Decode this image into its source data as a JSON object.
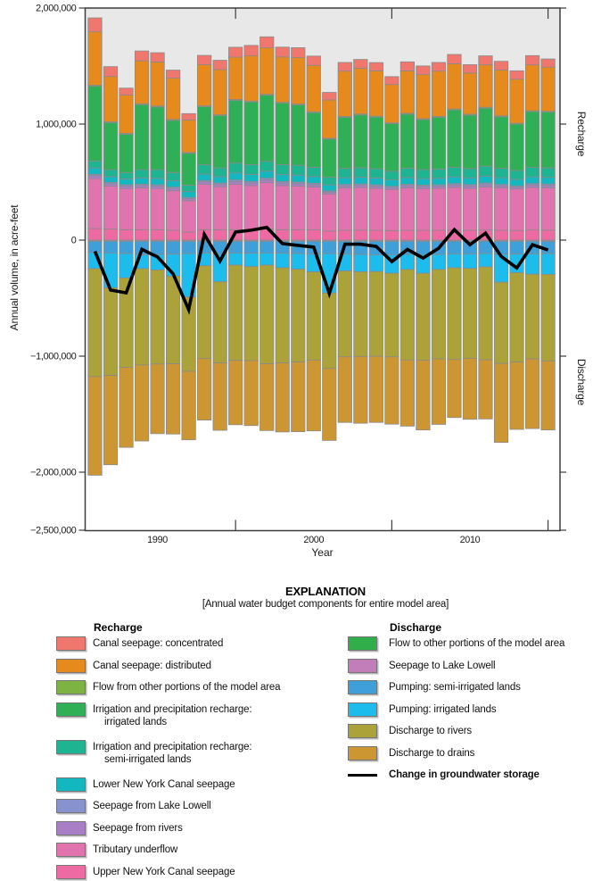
{
  "chart_data": {
    "type": "bar",
    "subtype": "diverging-stacked-bars-with-line-overlay",
    "title": "",
    "xlabel": "Year",
    "ylabel": "Annual volume, in acre-feet",
    "right_labels": {
      "top": "Recharge",
      "bottom": "Discharge"
    },
    "x": [
      1986,
      1987,
      1988,
      1989,
      1990,
      1991,
      1992,
      1993,
      1994,
      1995,
      1996,
      1997,
      1998,
      1999,
      2000,
      2001,
      2002,
      2003,
      2004,
      2005,
      2006,
      2007,
      2008,
      2009,
      2010,
      2011,
      2012,
      2013,
      2014,
      2015
    ],
    "ylim": [
      -2500000,
      2000000
    ],
    "yticks": [
      2000000,
      1000000,
      0,
      -1000000,
      -2000000,
      -2500000
    ],
    "ytick_labels": [
      "2,000,000",
      "1,000,000",
      "0",
      "−1,000,000",
      "−2,000,000",
      "−2,500,000"
    ],
    "xticks_labeled": [
      1990,
      2000,
      2010
    ],
    "xtick_labels": [
      "1990",
      "2000",
      "2010"
    ],
    "xticks_minor": [
      1995,
      2005,
      2015
    ],
    "grid": false,
    "recharge_background": "#e8e8e8",
    "bar_edge_color": "#8a8a8a",
    "recharge_series": [
      {
        "name": "Upper New York Canal seepage",
        "color": "#ee6aa2",
        "values": [
          100000,
          95000,
          90000,
          90000,
          90000,
          85000,
          70000,
          90000,
          90000,
          90000,
          90000,
          95000,
          90000,
          90000,
          88000,
          78000,
          85000,
          86000,
          85000,
          82000,
          85000,
          84000,
          85000,
          87000,
          85000,
          87000,
          85000,
          83000,
          87000,
          86000
        ]
      },
      {
        "name": "Tributary underflow",
        "color": "#e173ae",
        "values": [
          430000,
          370000,
          355000,
          360000,
          355000,
          340000,
          270000,
          390000,
          370000,
          390000,
          380000,
          400000,
          380000,
          375000,
          370000,
          320000,
          365000,
          368000,
          362000,
          355000,
          365000,
          360000,
          362000,
          368000,
          362000,
          370000,
          365000,
          358000,
          368000,
          365000
        ]
      },
      {
        "name": "Seepage from rivers",
        "color": "#a87fc5",
        "values": [
          25000,
          20000,
          20000,
          20000,
          20000,
          20000,
          18000,
          22000,
          20000,
          25000,
          22000,
          25000,
          22000,
          22000,
          20000,
          16000,
          18000,
          18000,
          18000,
          16000,
          20000,
          18000,
          18000,
          20000,
          20000,
          22000,
          18000,
          16000,
          20000,
          20000
        ]
      },
      {
        "name": "Seepage from Lake Lowell",
        "color": "#8793cf",
        "values": [
          12000,
          12000,
          12000,
          12000,
          12000,
          12000,
          10000,
          12000,
          12000,
          14000,
          13000,
          14000,
          13000,
          13000,
          12000,
          10000,
          12000,
          12000,
          12000,
          11000,
          12000,
          12000,
          12000,
          12000,
          12000,
          13000,
          12000,
          11000,
          12000,
          12000
        ]
      },
      {
        "name": "Lower New York Canal seepage",
        "color": "#12b7bf",
        "values": [
          55000,
          50000,
          50000,
          55000,
          55000,
          55000,
          50000,
          55000,
          55000,
          60000,
          60000,
          60000,
          60000,
          60000,
          58000,
          52000,
          58000,
          58000,
          58000,
          55000,
          58000,
          56000,
          56000,
          58000,
          58000,
          60000,
          58000,
          56000,
          58000,
          58000
        ]
      },
      {
        "name": "Irrigation and precipitation recharge: semi-irrigated lands",
        "color": "#1eb391",
        "values": [
          60000,
          60000,
          55000,
          70000,
          75000,
          70000,
          55000,
          80000,
          75000,
          85000,
          85000,
          85000,
          85000,
          85000,
          80000,
          65000,
          80000,
          82000,
          80000,
          75000,
          80000,
          78000,
          80000,
          82000,
          80000,
          85000,
          80000,
          76000,
          82000,
          82000
        ]
      },
      {
        "name": "Irrigation and precipitation recharge: irrigated lands",
        "color": "#2fb057",
        "values": [
          645000,
          405000,
          330000,
          560000,
          540000,
          450000,
          275000,
          500000,
          450000,
          540000,
          540000,
          570000,
          530000,
          520000,
          470000,
          330000,
          440000,
          455000,
          445000,
          410000,
          465000,
          430000,
          445000,
          495000,
          460000,
          500000,
          445000,
          400000,
          480000,
          480000
        ]
      },
      {
        "name": "Flow from other portions of the model area",
        "color": "#7cb342",
        "values": [
          8000,
          8000,
          8000,
          8000,
          8000,
          8000,
          7000,
          8000,
          8000,
          8000,
          8000,
          8000,
          8000,
          8000,
          8000,
          7000,
          8000,
          8000,
          8000,
          7000,
          8000,
          8000,
          8000,
          8000,
          8000,
          8000,
          8000,
          7000,
          8000,
          8000
        ]
      },
      {
        "name": "Canal seepage: distributed",
        "color": "#e68a1e",
        "values": [
          460000,
          390000,
          330000,
          370000,
          380000,
          355000,
          280000,
          355000,
          390000,
          365000,
          390000,
          400000,
          390000,
          400000,
          400000,
          330000,
          390000,
          395000,
          390000,
          330000,
          365000,
          380000,
          390000,
          390000,
          355000,
          365000,
          395000,
          380000,
          395000,
          380000
        ]
      },
      {
        "name": "Canal seepage: concentrated",
        "color": "#f0776d",
        "values": [
          120000,
          85000,
          60000,
          85000,
          80000,
          70000,
          55000,
          80000,
          80000,
          85000,
          90000,
          95000,
          85000,
          85000,
          80000,
          65000,
          75000,
          75000,
          72000,
          68000,
          78000,
          75000,
          75000,
          80000,
          72000,
          78000,
          75000,
          72000,
          80000,
          70000
        ]
      }
    ],
    "discharge_series": [
      {
        "name": "Flow to other portions of the model area",
        "color": "#2fae4a",
        "values": [
          3000,
          3000,
          3000,
          3000,
          3000,
          3000,
          3000,
          3000,
          3000,
          3000,
          3000,
          3000,
          3000,
          3000,
          3000,
          3000,
          3000,
          3000,
          3000,
          3000,
          3000,
          3000,
          3000,
          3000,
          3000,
          3000,
          3000,
          3000,
          3000,
          3000
        ]
      },
      {
        "name": "Seepage to Lake Lowell",
        "color": "#c27eb9",
        "values": [
          8000,
          8000,
          8000,
          8000,
          8000,
          8000,
          8000,
          8000,
          8000,
          8000,
          8000,
          8000,
          8000,
          8000,
          8000,
          8000,
          8000,
          8000,
          8000,
          8000,
          8000,
          8000,
          8000,
          8000,
          8000,
          8000,
          8000,
          8000,
          8000,
          8000
        ]
      },
      {
        "name": "Pumping: semi-irrigated lands",
        "color": "#3f9fd8",
        "values": [
          95000,
          100000,
          105000,
          115000,
          112000,
          110000,
          105000,
          100000,
          108000,
          100000,
          102000,
          100000,
          102000,
          105000,
          108000,
          105000,
          110000,
          112000,
          115000,
          115000,
          112000,
          115000,
          112000,
          108000,
          108000,
          105000,
          112000,
          110000,
          108000,
          105000
        ]
      },
      {
        "name": "Pumping: irrigated lands",
        "color": "#1cbcec",
        "values": [
          140000,
          300000,
          210000,
          120000,
          135000,
          190000,
          375000,
          110000,
          240000,
          105000,
          115000,
          105000,
          125000,
          135000,
          155000,
          340000,
          145000,
          150000,
          145000,
          160000,
          130000,
          160000,
          130000,
          120000,
          125000,
          115000,
          240000,
          160000,
          175000,
          180000
        ]
      },
      {
        "name": "Discharge to rivers",
        "color": "#aca23a",
        "values": [
          930000,
          755000,
          770000,
          830000,
          810000,
          755000,
          640000,
          800000,
          700000,
          820000,
          810000,
          850000,
          820000,
          800000,
          760000,
          650000,
          740000,
          730000,
          730000,
          720000,
          780000,
          750000,
          770000,
          790000,
          775000,
          800000,
          700000,
          770000,
          730000,
          745000
        ]
      },
      {
        "name": "Discharge to drains",
        "color": "#cc9733",
        "values": [
          850000,
          770000,
          690000,
          655000,
          600000,
          605000,
          590000,
          530000,
          580000,
          555000,
          560000,
          575000,
          595000,
          600000,
          610000,
          620000,
          565000,
          575000,
          570000,
          580000,
          570000,
          600000,
          565000,
          500000,
          525000,
          510000,
          680000,
          580000,
          600000,
          595000
        ]
      }
    ],
    "line_series": {
      "name": "Change in groundwater storage",
      "color": "#000000",
      "values": [
        -97000,
        -430000,
        -455000,
        -80000,
        -145000,
        -290000,
        -600000,
        50000,
        -180000,
        70000,
        85000,
        110000,
        -30000,
        -45000,
        -60000,
        -460000,
        -35000,
        -35000,
        -55000,
        -185000,
        -80000,
        -155000,
        -70000,
        90000,
        -40000,
        60000,
        -140000,
        -240000,
        -40000,
        -85000
      ]
    }
  },
  "explanation": {
    "title": "EXPLANATION",
    "subtitle": "[Annual water budget components for entire model area]",
    "recharge_header": "Recharge",
    "discharge_header": "Discharge",
    "recharge_items": [
      {
        "label": "Canal seepage: concentrated",
        "color": "#f0776d"
      },
      {
        "label": "Canal seepage: distributed",
        "color": "#e68a1e"
      },
      {
        "label": "Flow from other portions of the model area",
        "color": "#7cb342"
      },
      {
        "label": "Irrigation and precipitation recharge:",
        "label2": "irrigated lands",
        "color": "#2fb057"
      },
      {
        "label": "Irrigation and precipitation recharge:",
        "label2": "semi-irrigated lands",
        "color": "#1eb391"
      },
      {
        "label": "Lower New York Canal seepage",
        "color": "#12b7bf"
      },
      {
        "label": "Seepage from Lake Lowell",
        "color": "#8793cf"
      },
      {
        "label": "Seepage from rivers",
        "color": "#a87fc5"
      },
      {
        "label": "Tributary underflow",
        "color": "#e173ae"
      },
      {
        "label": "Upper New York Canal seepage",
        "color": "#ee6aa2"
      }
    ],
    "discharge_items": [
      {
        "label": "Flow to other portions of the model area",
        "color": "#2fae4a"
      },
      {
        "label": "Seepage to Lake Lowell",
        "color": "#c27eb9"
      },
      {
        "label": "Pumping: semi-irrigated lands",
        "color": "#3f9fd8"
      },
      {
        "label": "Pumping: irrigated lands",
        "color": "#1cbcec"
      },
      {
        "label": "Discharge to rivers",
        "color": "#aca23a"
      },
      {
        "label": "Discharge to drains",
        "color": "#cc9733"
      },
      {
        "label": "Change in groundwater storage",
        "color": "#000000",
        "type": "line",
        "bold": true
      }
    ]
  }
}
